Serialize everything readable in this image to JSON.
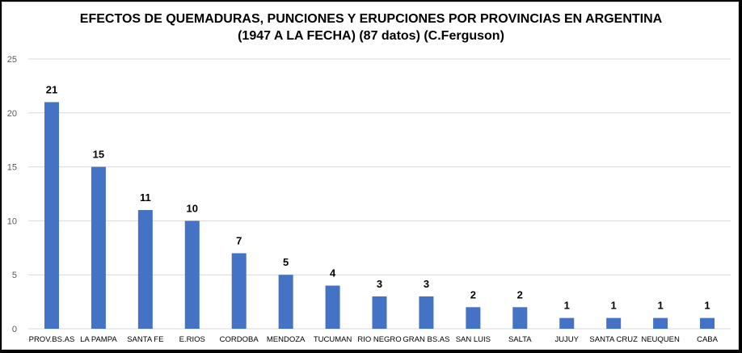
{
  "chart_data": {
    "type": "bar",
    "title_line1": "EFECTOS DE QUEMADURAS, PUNCIONES Y ERUPCIONES POR PROVINCIAS EN ARGENTINA",
    "title_line2": "(1947 A LA FECHA) (87 datos) (C.Ferguson)",
    "categories": [
      "PROV.BS.AS",
      "LA PAMPA",
      "SANTA FE",
      "E.RIOS",
      "CORDOBA",
      "MENDOZA",
      "TUCUMAN",
      "RIO NEGRO",
      "GRAN BS.AS",
      "SAN LUIS",
      "SALTA",
      "JUJUY",
      "SANTA CRUZ",
      "NEUQUEN",
      "CABA"
    ],
    "values": [
      21,
      15,
      11,
      10,
      7,
      5,
      4,
      3,
      3,
      2,
      2,
      1,
      1,
      1,
      1
    ],
    "yticks": [
      0,
      5,
      10,
      15,
      20,
      25
    ],
    "ylim": [
      0,
      25
    ],
    "xlabel": "",
    "ylabel": "",
    "grid": true,
    "data_labels": true,
    "bar_color": "#4472c4",
    "grid_color": "#d9d9d9"
  }
}
